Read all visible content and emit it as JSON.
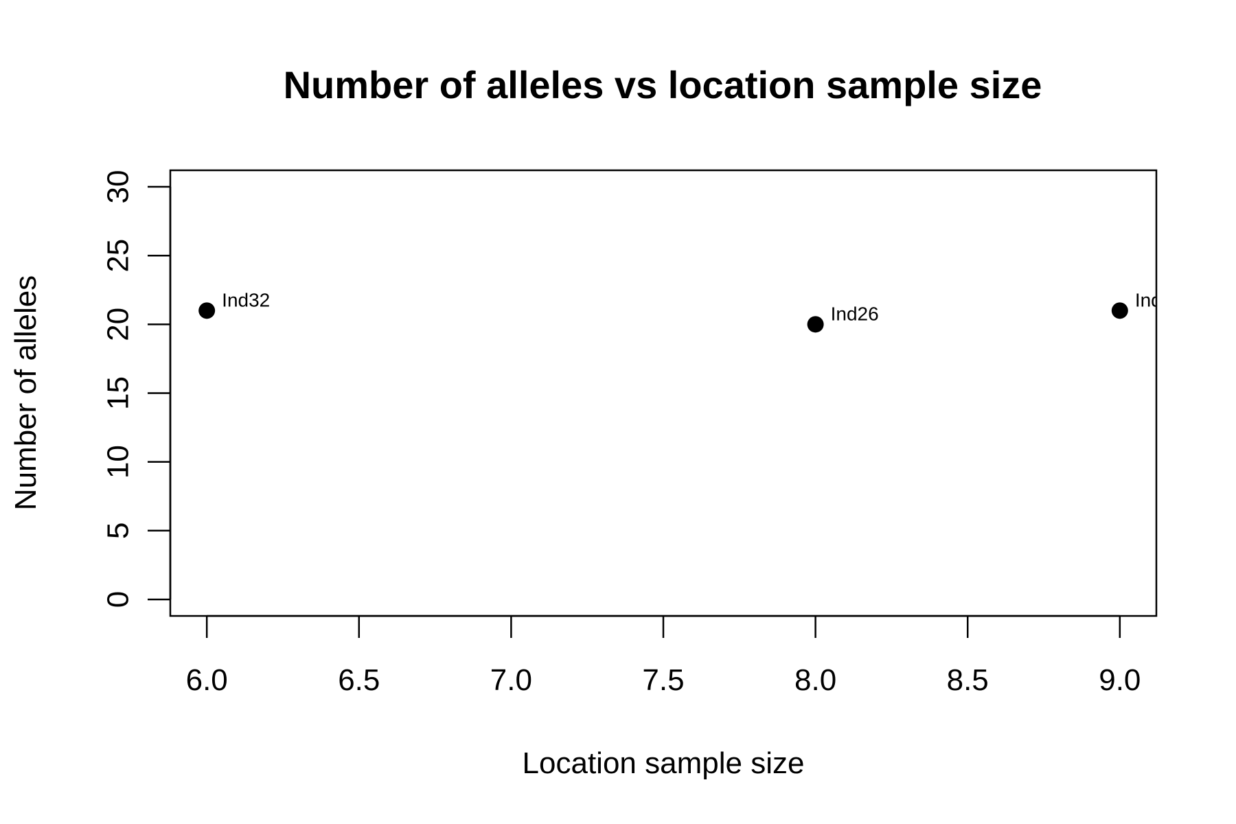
{
  "chart_data": {
    "type": "scatter",
    "title": "Number of alleles vs location sample size",
    "xlabel": "Location sample size",
    "ylabel": "Number of alleles",
    "xlim": [
      5.88,
      9.12
    ],
    "ylim": [
      -1.2,
      31.2
    ],
    "x_ticks": [
      {
        "value": 6.0,
        "label": "6.0"
      },
      {
        "value": 6.5,
        "label": "6.5"
      },
      {
        "value": 7.0,
        "label": "7.0"
      },
      {
        "value": 7.5,
        "label": "7.5"
      },
      {
        "value": 8.0,
        "label": "8.0"
      },
      {
        "value": 8.5,
        "label": "8.5"
      },
      {
        "value": 9.0,
        "label": "9.0"
      }
    ],
    "y_ticks": [
      {
        "value": 0,
        "label": "0"
      },
      {
        "value": 5,
        "label": "5"
      },
      {
        "value": 10,
        "label": "10"
      },
      {
        "value": 15,
        "label": "15"
      },
      {
        "value": 20,
        "label": "20"
      },
      {
        "value": 25,
        "label": "25"
      },
      {
        "value": 30,
        "label": "30"
      }
    ],
    "points": [
      {
        "x": 6,
        "y": 21,
        "label": "Ind32"
      },
      {
        "x": 8,
        "y": 20,
        "label": "Ind26"
      },
      {
        "x": 9,
        "y": 21,
        "label": "Ind"
      }
    ],
    "grid": false,
    "marker_color": "#000000"
  }
}
